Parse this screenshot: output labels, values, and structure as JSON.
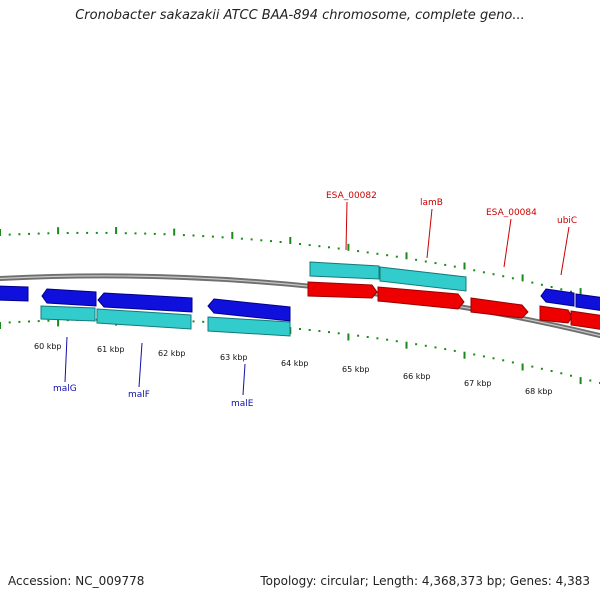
{
  "title": "Cronobacter sakazakii ATCC BAA-894 chromosome, complete geno...",
  "accession_text": "Accession: NC_009778",
  "topology_text": "Topology: circular; Length: 4,368,373 bp; Genes: 4,383",
  "colors": {
    "backbone": "#777777",
    "tick": "#1a8a1a",
    "forward_gene": "#ee0000",
    "reverse_gene": "#1010dd",
    "cds": "#33cccc",
    "forward_label": "#cc0000",
    "reverse_label": "#1010aa"
  },
  "ruler_labels": [
    "60 kbp",
    "61 kbp",
    "62 kbp",
    "63 kbp",
    "64 kbp",
    "65 kbp",
    "66 kbp",
    "67 kbp",
    "68 kbp"
  ],
  "genes_forward": [
    {
      "name": "ESA_00082"
    },
    {
      "name": "lamB"
    },
    {
      "name": "ESA_00084"
    },
    {
      "name": "ubiC"
    }
  ],
  "genes_reverse": [
    {
      "name": "malG"
    },
    {
      "name": "malF"
    },
    {
      "name": "malE"
    }
  ]
}
